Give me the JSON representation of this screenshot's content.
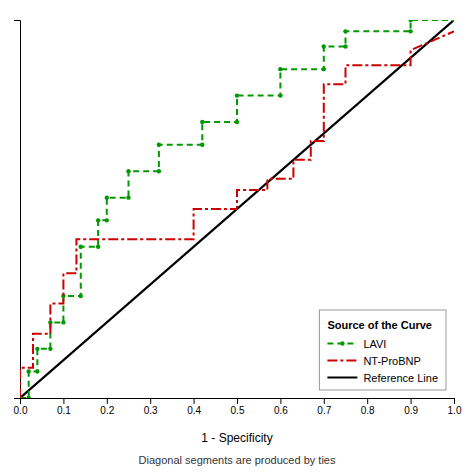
{
  "chart_data": {
    "type": "line",
    "xlabel": "1 - Specificity",
    "subtitle": "Diagonal segments are produced by ties",
    "legend_title": "Source of the Curve",
    "legend": "lower right",
    "grid": false,
    "tick_labels": "x",
    "xlim": [
      0.0,
      1.0
    ],
    "ylim": [
      0.0,
      1.0
    ],
    "xticks": [
      {
        "value": 0.0,
        "label": "0.0"
      },
      0.1,
      0.2,
      0.3,
      0.4,
      0.5,
      0.6,
      0.7,
      0.8,
      0.9,
      {
        "value": 1.0,
        "label": "1.0"
      }
    ],
    "yticks": [],
    "series": [
      {
        "name": "LAVI",
        "color": "#009900",
        "line_style": "dashed",
        "marker": "point",
        "x": [
          0.0,
          0.02,
          0.02,
          0.04,
          0.04,
          0.07,
          0.07,
          0.1,
          0.1,
          0.14,
          0.14,
          0.18,
          0.18,
          0.2,
          0.2,
          0.25,
          0.25,
          0.32,
          0.32,
          0.42,
          0.42,
          0.5,
          0.5,
          0.6,
          0.6,
          0.7,
          0.7,
          0.75,
          0.75,
          0.9,
          0.9,
          1.0
        ],
        "values": [
          0.0,
          0.0,
          0.07,
          0.07,
          0.13,
          0.13,
          0.2,
          0.2,
          0.27,
          0.27,
          0.4,
          0.4,
          0.47,
          0.47,
          0.53,
          0.53,
          0.6,
          0.6,
          0.67,
          0.67,
          0.73,
          0.73,
          0.8,
          0.8,
          0.87,
          0.87,
          0.93,
          0.93,
          0.97,
          0.97,
          1.0,
          1.0
        ]
      },
      {
        "name": "NT-ProBNP",
        "color": "#cc0000",
        "line_style": "dashdot",
        "x": [
          0.0,
          0.0,
          0.03,
          0.03,
          0.07,
          0.07,
          0.1,
          0.1,
          0.13,
          0.13,
          0.17,
          0.17,
          0.4,
          0.4,
          0.5,
          0.5,
          0.57,
          0.57,
          0.63,
          0.63,
          0.67,
          0.67,
          0.7,
          0.7,
          0.75,
          0.75,
          0.9,
          0.9,
          1.0
        ],
        "values": [
          0.0,
          0.08,
          0.08,
          0.17,
          0.17,
          0.25,
          0.25,
          0.33,
          0.33,
          0.42,
          0.42,
          0.42,
          0.42,
          0.5,
          0.5,
          0.55,
          0.55,
          0.58,
          0.58,
          0.63,
          0.63,
          0.68,
          0.68,
          0.83,
          0.83,
          0.88,
          0.88,
          0.92,
          0.97
        ]
      },
      {
        "name": "Reference Line",
        "color": "#000000",
        "line_style": "solid",
        "x": [
          0,
          1
        ],
        "values": [
          0,
          1
        ]
      }
    ]
  }
}
